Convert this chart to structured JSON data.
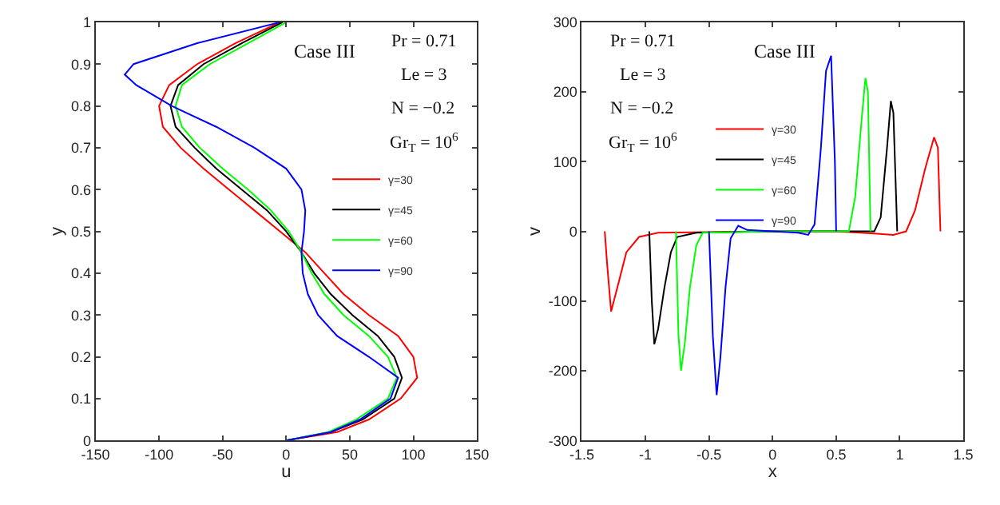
{
  "chart_data": [
    {
      "type": "line",
      "xlabel": "u",
      "ylabel": "y",
      "xlim": [
        -150,
        150
      ],
      "ylim": [
        0,
        1
      ],
      "xticks": [
        -150,
        -100,
        -50,
        0,
        50,
        100,
        150
      ],
      "yticks": [
        0,
        0.1,
        0.2,
        0.3,
        0.4,
        0.5,
        0.6,
        0.7,
        0.8,
        0.9,
        1
      ],
      "legend": "right",
      "marker": "none",
      "line_style": "solid",
      "annotations": [
        "Case III",
        "Pr = 0.71",
        "Le = 3",
        "N = −0.2",
        "Gr$_{T}$ = 10$^{6}$"
      ],
      "series": [
        {
          "name": "γ=30",
          "color": "#ff0000",
          "x": [
            0,
            40,
            65,
            90,
            103,
            100,
            88,
            65,
            45,
            30,
            15,
            -5,
            -25,
            -45,
            -65,
            -83,
            -97,
            -100,
            -92,
            -70,
            -40,
            -5
          ],
          "values": [
            0,
            0.02,
            0.05,
            0.1,
            0.15,
            0.2,
            0.25,
            0.3,
            0.35,
            0.4,
            0.45,
            0.5,
            0.55,
            0.6,
            0.65,
            0.7,
            0.75,
            0.8,
            0.85,
            0.9,
            0.95,
            1
          ]
        },
        {
          "name": "γ=45",
          "color": "#000000",
          "x": [
            0,
            35,
            60,
            85,
            91,
            85,
            72,
            52,
            35,
            22,
            12,
            0,
            -15,
            -35,
            -55,
            -72,
            -87,
            -91,
            -85,
            -65,
            -35,
            -3
          ],
          "values": [
            0,
            0.02,
            0.05,
            0.1,
            0.15,
            0.2,
            0.25,
            0.3,
            0.35,
            0.4,
            0.45,
            0.5,
            0.55,
            0.6,
            0.65,
            0.7,
            0.75,
            0.8,
            0.85,
            0.9,
            0.95,
            1
          ]
        },
        {
          "name": "γ=60",
          "color": "#00ff00",
          "x": [
            0,
            33,
            55,
            80,
            87,
            80,
            65,
            45,
            30,
            20,
            12,
            2,
            -12,
            -30,
            -50,
            -68,
            -82,
            -87,
            -82,
            -60,
            -30,
            0
          ],
          "values": [
            0,
            0.02,
            0.05,
            0.1,
            0.15,
            0.2,
            0.25,
            0.3,
            0.35,
            0.4,
            0.45,
            0.5,
            0.55,
            0.6,
            0.65,
            0.7,
            0.75,
            0.8,
            0.85,
            0.9,
            0.95,
            1
          ]
        },
        {
          "name": "γ=90",
          "color": "#0000ff",
          "x": [
            0,
            35,
            58,
            82,
            88,
            65,
            40,
            25,
            17,
            13,
            12,
            14,
            15,
            12,
            0,
            -25,
            -55,
            -90,
            -118,
            -127,
            -120,
            -70,
            -5
          ],
          "values": [
            0,
            0.02,
            0.05,
            0.1,
            0.15,
            0.2,
            0.25,
            0.3,
            0.35,
            0.4,
            0.45,
            0.5,
            0.55,
            0.6,
            0.65,
            0.7,
            0.75,
            0.8,
            0.85,
            0.875,
            0.9,
            0.95,
            1
          ]
        }
      ]
    },
    {
      "type": "line",
      "xlabel": "x",
      "ylabel": "v",
      "xlim": [
        -1.5,
        1.5
      ],
      "ylim": [
        -300,
        300
      ],
      "xticks": [
        -1.5,
        -1,
        -0.5,
        0,
        0.5,
        1,
        1.5
      ],
      "yticks": [
        -300,
        -200,
        -100,
        0,
        100,
        200,
        300
      ],
      "legend": "top",
      "marker": "none",
      "line_style": "solid",
      "annotations": [
        "Pr = 0.71",
        "Le = 3",
        "N = −0.2",
        "Gr$_{T}$ = 10$^{6}$",
        "Case III"
      ],
      "series": [
        {
          "name": "γ=30",
          "color": "#ff0000",
          "x": [
            -1.32,
            -1.3,
            -1.27,
            -1.22,
            -1.15,
            -1.05,
            -0.9,
            0,
            0.5,
            0.8,
            0.95,
            1.05,
            1.12,
            1.2,
            1.27,
            1.3,
            1.32
          ],
          "values": [
            0,
            -50,
            -115,
            -80,
            -30,
            -8,
            -2,
            0,
            0,
            -3,
            -5,
            0,
            30,
            90,
            135,
            120,
            0
          ]
        },
        {
          "name": "γ=45",
          "color": "#000000",
          "x": [
            -0.97,
            -0.95,
            -0.93,
            -0.9,
            -0.85,
            -0.8,
            -0.75,
            -0.6,
            0,
            0.6,
            0.8,
            0.85,
            0.9,
            0.93,
            0.95,
            0.98
          ],
          "values": [
            0,
            -100,
            -162,
            -140,
            -80,
            -30,
            -8,
            -2,
            0,
            0,
            0,
            20,
            120,
            187,
            170,
            0
          ]
        },
        {
          "name": "γ=60",
          "color": "#00ff00",
          "x": [
            -0.76,
            -0.74,
            -0.72,
            -0.69,
            -0.65,
            -0.6,
            -0.55,
            0,
            0.6,
            0.65,
            0.7,
            0.73,
            0.75,
            0.77
          ],
          "values": [
            0,
            -150,
            -200,
            -160,
            -80,
            -20,
            -2,
            0,
            0,
            50,
            160,
            220,
            200,
            0
          ]
        },
        {
          "name": "γ=90",
          "color": "#0000ff",
          "x": [
            -0.5,
            -0.47,
            -0.44,
            -0.41,
            -0.37,
            -0.33,
            -0.27,
            -0.2,
            0,
            0.2,
            0.28,
            0.33,
            0.38,
            0.42,
            0.46,
            0.49,
            0.5
          ],
          "values": [
            0,
            -150,
            -235,
            -180,
            -80,
            -10,
            8,
            2,
            0,
            -2,
            -5,
            10,
            120,
            230,
            252,
            100,
            0
          ]
        }
      ]
    }
  ]
}
